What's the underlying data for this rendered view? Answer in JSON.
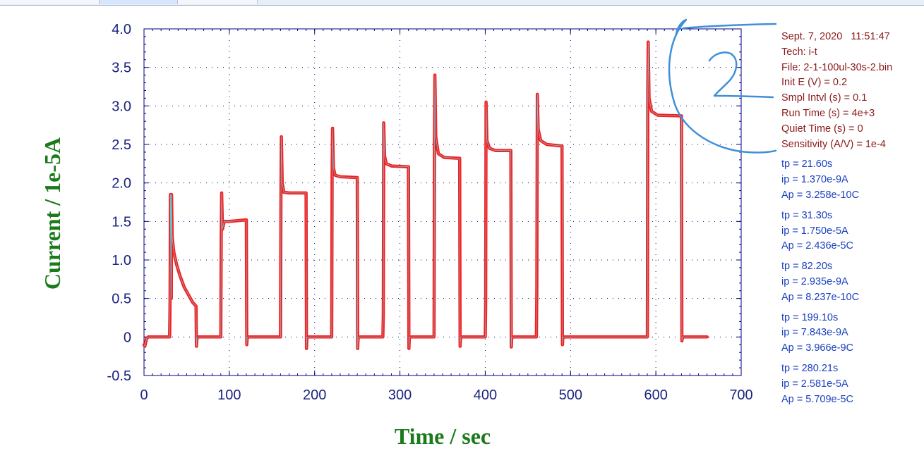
{
  "chart_data": {
    "type": "line",
    "title": "",
    "xlabel": "Time / sec",
    "ylabel": "Current / 1e-5A",
    "xlim": [
      0,
      700
    ],
    "ylim": [
      -0.5,
      4.0
    ],
    "x_ticks": [
      "0",
      "100",
      "200",
      "300",
      "400",
      "500",
      "600",
      "700"
    ],
    "y_ticks": [
      "4.0",
      "3.5",
      "3.0",
      "2.5",
      "2.0",
      "1.5",
      "1.0",
      "0.5",
      "0",
      "-0.5"
    ],
    "grid": "dotted",
    "legend": "none",
    "series": [
      {
        "color": "#ff1a1a",
        "points": [
          [
            0,
            -0.1
          ],
          [
            1,
            -0.12
          ],
          [
            3,
            -0.02
          ],
          [
            5,
            0.0
          ],
          [
            30,
            0.0
          ],
          [
            30.5,
            0.45
          ],
          [
            31,
            1.85
          ],
          [
            31.5,
            1.85
          ],
          [
            32,
            0.5
          ],
          [
            32.3,
            1.85
          ],
          [
            33,
            1.3
          ],
          [
            35,
            1.1
          ],
          [
            38,
            0.95
          ],
          [
            42,
            0.8
          ],
          [
            47,
            0.65
          ],
          [
            52,
            0.55
          ],
          [
            57,
            0.45
          ],
          [
            61,
            0.4
          ],
          [
            61.5,
            -0.12
          ],
          [
            62,
            -0.02
          ],
          [
            64,
            0.0
          ],
          [
            90,
            0.0
          ],
          [
            90.5,
            1.3
          ],
          [
            91,
            1.87
          ],
          [
            92,
            1.4
          ],
          [
            94,
            1.5
          ],
          [
            100,
            1.5
          ],
          [
            120,
            1.52
          ],
          [
            120.5,
            -0.1
          ],
          [
            121,
            -0.01
          ],
          [
            123,
            0.0
          ],
          [
            160,
            0.0
          ],
          [
            160.5,
            1.8
          ],
          [
            161,
            2.6
          ],
          [
            162,
            2.0
          ],
          [
            164,
            1.88
          ],
          [
            170,
            1.87
          ],
          [
            190,
            1.87
          ],
          [
            190.5,
            -0.15
          ],
          [
            191,
            -0.01
          ],
          [
            193,
            0.0
          ],
          [
            220,
            0.0
          ],
          [
            220.5,
            2.1
          ],
          [
            221,
            2.71
          ],
          [
            222,
            2.2
          ],
          [
            224,
            2.1
          ],
          [
            230,
            2.08
          ],
          [
            250,
            2.07
          ],
          [
            250.5,
            -0.15
          ],
          [
            251,
            -0.01
          ],
          [
            253,
            0.0
          ],
          [
            280,
            0.0
          ],
          [
            280.5,
            0.3
          ],
          [
            281,
            2.78
          ],
          [
            282,
            2.35
          ],
          [
            284,
            2.25
          ],
          [
            290,
            2.22
          ],
          [
            310,
            2.21
          ],
          [
            310.5,
            -0.15
          ],
          [
            311,
            -0.01
          ],
          [
            313,
            0.0
          ],
          [
            340,
            0.0
          ],
          [
            340.5,
            2.4
          ],
          [
            341,
            3.4
          ],
          [
            342,
            2.6
          ],
          [
            345,
            2.38
          ],
          [
            352,
            2.33
          ],
          [
            370,
            2.32
          ],
          [
            370.5,
            -0.12
          ],
          [
            371,
            -0.01
          ],
          [
            373,
            0.0
          ],
          [
            400,
            0.0
          ],
          [
            400.5,
            0.4
          ],
          [
            401,
            3.05
          ],
          [
            402,
            2.55
          ],
          [
            405,
            2.45
          ],
          [
            412,
            2.42
          ],
          [
            430,
            2.42
          ],
          [
            430.5,
            -0.13
          ],
          [
            431,
            -0.01
          ],
          [
            433,
            0.0
          ],
          [
            460,
            0.0
          ],
          [
            460.5,
            0.6
          ],
          [
            461,
            3.15
          ],
          [
            462,
            2.7
          ],
          [
            465,
            2.55
          ],
          [
            472,
            2.5
          ],
          [
            490,
            2.48
          ],
          [
            490.5,
            -0.1
          ],
          [
            491,
            -0.01
          ],
          [
            493,
            0.0
          ],
          [
            590,
            0.0
          ],
          [
            590.5,
            3.2
          ],
          [
            591,
            3.83
          ],
          [
            592,
            3.1
          ],
          [
            595,
            2.93
          ],
          [
            602,
            2.88
          ],
          [
            630,
            2.87
          ],
          [
            630.5,
            -0.05
          ],
          [
            631,
            -0.01
          ],
          [
            633,
            0.0
          ],
          [
            660,
            0.0
          ]
        ]
      }
    ]
  },
  "info": {
    "meta": [
      "Sept. 7, 2020   11:51:47",
      "Tech: i-t",
      "File: 2-1-100ul-30s-2.bin",
      "Init E (V) = 0.2",
      "Smpl Intvl (s) = 0.1",
      "Run Time (s) = 4e+3",
      "Quiet Time (s) = 0",
      "Sensitivity (A/V) = 1e-4"
    ],
    "peaks": [
      {
        "tp": "tp = 21.60s",
        "ip": "ip = 1.370e-9A",
        "ap": "Ap = 3.258e-10C"
      },
      {
        "tp": "tp = 31.30s",
        "ip": "ip = 1.750e-5A",
        "ap": "Ap = 2.436e-5C"
      },
      {
        "tp": "tp = 82.20s",
        "ip": "ip = 2.935e-9A",
        "ap": "Ap = 8.237e-10C"
      },
      {
        "tp": "tp = 199.10s",
        "ip": "ip = 7.843e-9A",
        "ap": "Ap = 3.966e-9C"
      },
      {
        "tp": "tp = 280.21s",
        "ip": "ip = 2.581e-5A",
        "ap": "Ap = 5.709e-5C"
      }
    ]
  },
  "colors": {
    "trace": "#ff1a1a",
    "trace_edge": "#5fc8d8",
    "annotation": "#3f8fd8",
    "axis_title": "#1b7a1b",
    "tick_label": "#1a237e"
  }
}
